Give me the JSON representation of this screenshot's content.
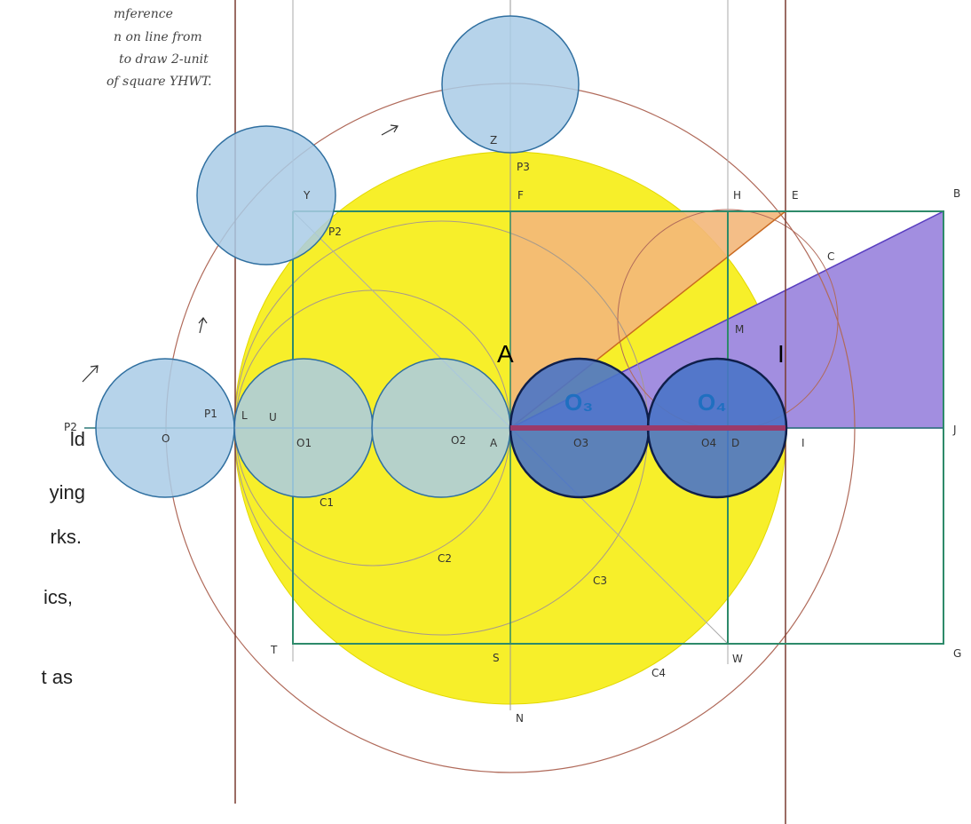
{
  "note": {
    "lines": [
      "mference",
      "n on line from",
      "to draw 2-unit",
      "of square YHWT."
    ]
  },
  "side_text": [
    "ld",
    "ying",
    "rks.",
    "ics,",
    "t as"
  ],
  "labels": {
    "top": [
      "Z",
      "P3",
      "Y",
      "F",
      "H",
      "E",
      "B",
      "P2",
      "C",
      "M"
    ],
    "big": [
      "A",
      "I"
    ],
    "centers": [
      "O₃",
      "O₄"
    ],
    "axis": [
      "P2",
      "P1",
      "L",
      "U",
      "O",
      "O1",
      "O2",
      "A",
      "O3",
      "O4",
      "D",
      "I",
      "J"
    ],
    "bottom": [
      "C1",
      "C2",
      "C3",
      "C4",
      "T",
      "S",
      "W",
      "G",
      "N"
    ]
  }
}
